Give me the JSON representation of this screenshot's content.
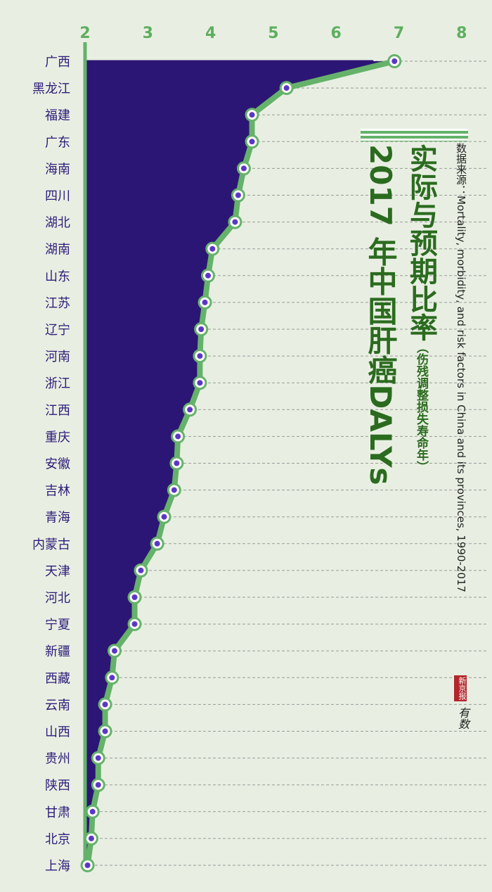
{
  "chart_data": {
    "type": "area",
    "title": "实际与预期比率",
    "title_note": "（伤残调整损失寿命年）",
    "subtitle": "2017 年中国肝癌DALYs",
    "source": "数据来源：Mortality, morbidity, and risk factors in China and its provinces, 1990-2017",
    "xlim": [
      2,
      8
    ],
    "x_ticks": [
      "2",
      "3",
      "4",
      "5",
      "6",
      "7",
      "8"
    ],
    "categories": [
      "广西",
      "黑龙江",
      "福建",
      "广东",
      "海南",
      "四川",
      "湖北",
      "湖南",
      "山东",
      "江苏",
      "辽宁",
      "河南",
      "浙江",
      "江西",
      "重庆",
      "安徽",
      "吉林",
      "青海",
      "内蒙古",
      "天津",
      "河北",
      "宁夏",
      "新疆",
      "西藏",
      "云南",
      "山西",
      "贵州",
      "陕西",
      "甘肃",
      "北京",
      "上海"
    ],
    "values": [
      6.93,
      5.21,
      4.66,
      4.66,
      4.53,
      4.44,
      4.39,
      4.03,
      3.96,
      3.91,
      3.85,
      3.83,
      3.83,
      3.67,
      3.48,
      3.46,
      3.42,
      3.26,
      3.15,
      2.89,
      2.79,
      2.79,
      2.47,
      2.43,
      2.32,
      2.32,
      2.21,
      2.21,
      2.12,
      2.1,
      2.04
    ],
    "grid": true,
    "colors": {
      "fill": "#2c1675",
      "line": "#65b26a",
      "marker_core": "#5b37c5",
      "marker_ring": "#ffffff",
      "grid": "#9a9a9a",
      "tick_label": "#5fae5f",
      "category_label": "#2d1b7a",
      "baseline": "#65b26a"
    }
  },
  "logo": {
    "seal": "新京报",
    "signature": "有数"
  }
}
